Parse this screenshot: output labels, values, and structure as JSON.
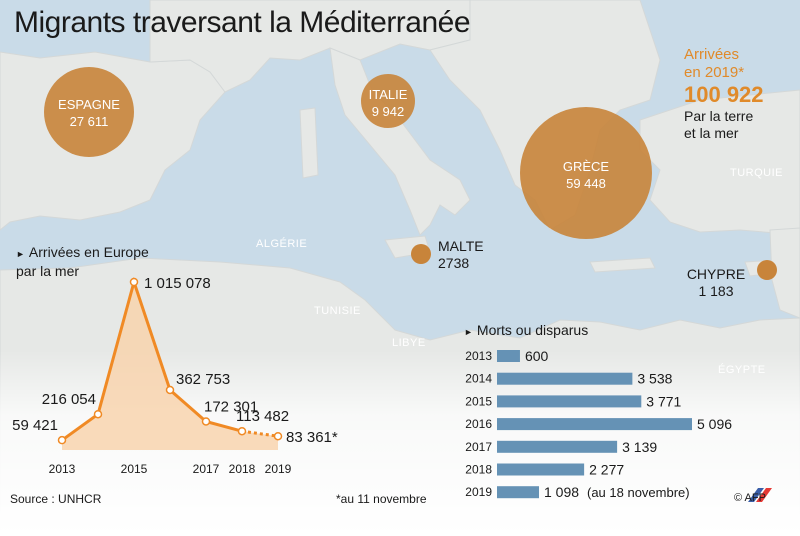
{
  "title": "Migrants traversant la Méditerranée",
  "map_labels": {
    "algerie": "ALGÉRIE",
    "tunisie": "TUNISIE",
    "libye": "LIBYE",
    "turquie": "TURQUIE",
    "egypte": "ÉGYPTE"
  },
  "arrivals_by_country": [
    {
      "country": "ESPAGNE",
      "value": "27 611"
    },
    {
      "country": "ITALIE",
      "value": "9 942"
    },
    {
      "country": "GRÈCE",
      "value": "59 448"
    },
    {
      "country": "MALTE",
      "value": "2738"
    },
    {
      "country": "CHYPRE",
      "value": "1 183"
    }
  ],
  "total_box": {
    "line1": "Arrivées",
    "line2": "en 2019*",
    "value": "100 922",
    "desc1": "Par la terre",
    "desc2": "et la mer"
  },
  "colors": {
    "bubble": "#c8843a",
    "line": "#f08a25",
    "area": "#f9d2aa",
    "bar": "#6592b5",
    "sea": "#c9dbe8",
    "land": "#e6e8e6"
  },
  "chart_data": [
    {
      "type": "area",
      "title": "Arrivées en Europe par la mer",
      "x": [
        2013,
        2014,
        2015,
        2016,
        2017,
        2018,
        2019
      ],
      "values": [
        59421,
        216054,
        1015078,
        362753,
        172301,
        113482,
        83361
      ],
      "value_labels": [
        "59 421",
        "216 054",
        "1 015 078",
        "362 753",
        "172 301",
        "113 482",
        "83 361*"
      ],
      "tick_labels": [
        "2013",
        "2015",
        "2017",
        "2018",
        "2019"
      ],
      "dashed_last_segment": true,
      "ylim": [
        0,
        1100000
      ]
    },
    {
      "type": "bar",
      "orientation": "horizontal",
      "title": "Morts ou disparus",
      "categories": [
        "2013",
        "2014",
        "2015",
        "2016",
        "2017",
        "2018",
        "2019"
      ],
      "values": [
        600,
        3538,
        3771,
        5096,
        3139,
        2277,
        1098
      ],
      "value_labels": [
        "600",
        "3 538",
        "3 771",
        "5 096",
        "3 139",
        "2 277",
        "1 098"
      ],
      "note_2019": "(au 18 novembre)",
      "xlim": [
        0,
        5200
      ]
    }
  ],
  "footer": {
    "source": "Source : UNHCR",
    "footnote": "*au 11 novembre",
    "credit": "© AFP"
  }
}
